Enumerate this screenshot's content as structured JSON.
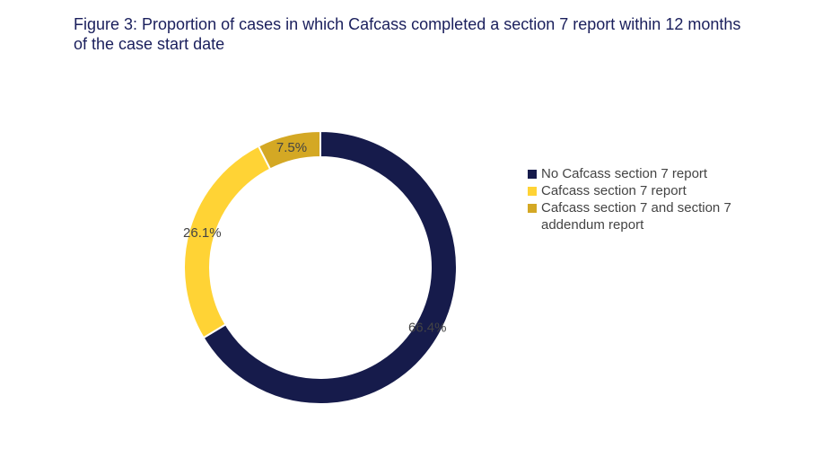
{
  "chart_data": {
    "type": "donut",
    "title": "Figure 3: Proportion of cases in which Cafcass completed a section 7 report within 12 months of the case start date",
    "series": [
      {
        "name": "No Cafcass section 7 report",
        "color": "#161b4b",
        "values": [
          66.4
        ],
        "value_labels": [
          "66.4%"
        ]
      },
      {
        "name": "Cafcass section 7 report",
        "color": "#ffd335",
        "values": [
          26.1
        ],
        "value_labels": [
          "26.1%"
        ]
      },
      {
        "name": "Cafcass section 7 and section 7 addendum report",
        "color": "#d4a824",
        "values": [
          7.5
        ],
        "value_labels": [
          "7.5%"
        ]
      }
    ],
    "legend": "right"
  }
}
